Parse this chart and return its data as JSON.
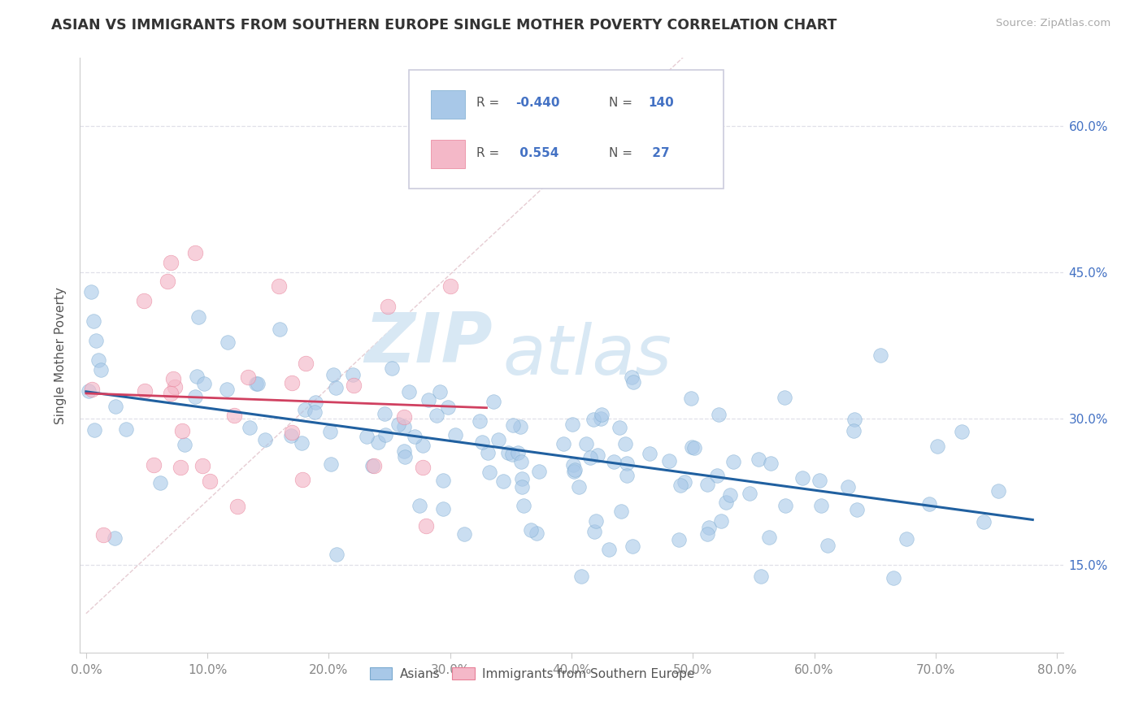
{
  "title": "ASIAN VS IMMIGRANTS FROM SOUTHERN EUROPE SINGLE MOTHER POVERTY CORRELATION CHART",
  "source": "Source: ZipAtlas.com",
  "ylabel": "Single Mother Poverty",
  "ytick_labels": [
    "15.0%",
    "30.0%",
    "45.0%",
    "60.0%"
  ],
  "ytick_values": [
    0.15,
    0.3,
    0.45,
    0.6
  ],
  "xlim": [
    -0.005,
    0.805
  ],
  "ylim": [
    0.06,
    0.67
  ],
  "blue_color": "#a8c8e8",
  "blue_edge_color": "#7aaacf",
  "pink_color": "#f4b8c8",
  "pink_edge_color": "#e88098",
  "blue_line_color": "#2060a0",
  "pink_line_color": "#d04060",
  "watermark_color": "#d8e8f4",
  "background": "#ffffff",
  "grid_color": "#e0e0e8",
  "legend_box_color": "#f8f8ff",
  "legend_border_color": "#ccccdd",
  "r1_val": "-0.440",
  "n1_val": "140",
  "r2_val": "0.554",
  "n2_val": "27"
}
